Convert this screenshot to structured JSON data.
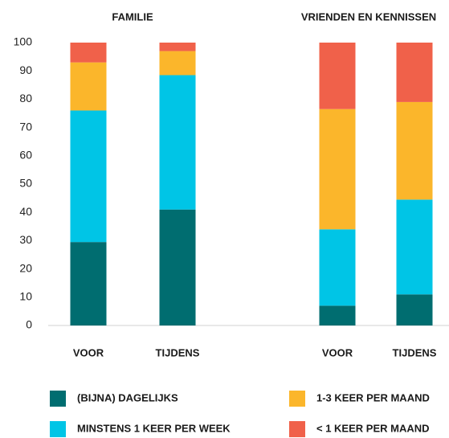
{
  "chart_data": {
    "type": "stacked_bar",
    "groups": [
      "FAMILIE",
      "VRIENDEN EN KENNISSEN"
    ],
    "categories": [
      "VOOR",
      "TIJDENS",
      "VOOR",
      "TIJDENS"
    ],
    "series": [
      {
        "name": "(BIJNA) DAGELIJKS",
        "color": "#006d70",
        "values": [
          29.5,
          41,
          7,
          11
        ]
      },
      {
        "name": "MINSTENS 1 KEER PER WEEK",
        "color": "#00c5e6",
        "values": [
          46.5,
          47.5,
          27,
          33.5
        ]
      },
      {
        "name": "1-3 KEER PER MAAND",
        "color": "#fbb62b",
        "values": [
          17,
          8.5,
          42.5,
          34.5
        ]
      },
      {
        "name": "< 1 KEER PER MAAND",
        "color": "#f0614a",
        "values": [
          7,
          3,
          23.5,
          21
        ]
      }
    ],
    "ylim": [
      0,
      100
    ],
    "yticks": [
      0,
      10,
      20,
      30,
      40,
      50,
      60,
      70,
      80,
      90,
      100
    ],
    "grid": false
  }
}
